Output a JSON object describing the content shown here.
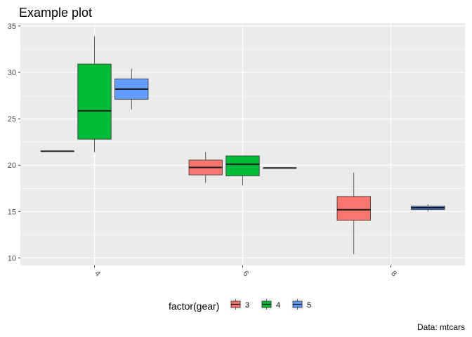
{
  "chart_data": {
    "type": "box",
    "title": "Example plot",
    "caption": "Data: mtcars",
    "xlabel": "",
    "ylabel": "",
    "categories": [
      "4",
      "6",
      "8"
    ],
    "ylim": [
      9.2,
      35.3
    ],
    "yticks": [
      10,
      15,
      20,
      25,
      30,
      35
    ],
    "grid": true,
    "legend": {
      "title": "factor(gear)",
      "position": "bottom"
    },
    "series": [
      {
        "name": "3",
        "color": "#F8766D",
        "boxes": [
          {
            "category": "4",
            "min": 21.5,
            "q1": 21.5,
            "median": 21.5,
            "q3": 21.5,
            "max": 21.5
          },
          {
            "category": "6",
            "min": 18.1,
            "q1": 18.95,
            "median": 19.75,
            "q3": 20.55,
            "max": 21.4
          },
          {
            "category": "8",
            "min": 10.4,
            "q1": 14.05,
            "median": 15.2,
            "q3": 16.625,
            "max": 19.2
          }
        ]
      },
      {
        "name": "4",
        "color": "#00BA38",
        "boxes": [
          {
            "category": "4",
            "min": 21.4,
            "q1": 22.8,
            "median": 25.85,
            "q3": 30.9,
            "max": 33.9
          },
          {
            "category": "6",
            "min": 17.8,
            "q1": 18.85,
            "median": 20.1,
            "q3": 21.0,
            "max": 21.0
          }
        ]
      },
      {
        "name": "5",
        "color": "#619CFF",
        "boxes": [
          {
            "category": "4",
            "min": 26.0,
            "q1": 27.1,
            "median": 28.2,
            "q3": 29.3,
            "max": 30.4
          },
          {
            "category": "6",
            "min": 19.7,
            "q1": 19.7,
            "median": 19.7,
            "q3": 19.7,
            "max": 19.7
          },
          {
            "category": "8",
            "min": 15.0,
            "q1": 15.2,
            "median": 15.4,
            "q3": 15.6,
            "max": 15.8
          }
        ]
      }
    ]
  }
}
